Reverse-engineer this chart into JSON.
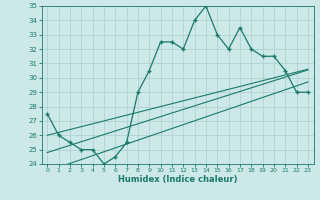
{
  "xlabel": "Humidex (Indice chaleur)",
  "x_data": [
    0,
    1,
    2,
    3,
    4,
    5,
    6,
    7,
    8,
    9,
    10,
    11,
    12,
    13,
    14,
    15,
    16,
    17,
    18,
    19,
    20,
    21,
    22,
    23
  ],
  "main_line": [
    27.5,
    26.0,
    25.5,
    25.0,
    25.0,
    24.0,
    24.5,
    25.5,
    29.0,
    30.5,
    32.5,
    32.5,
    32.0,
    34.0,
    35.0,
    33.0,
    32.0,
    33.5,
    32.0,
    31.5,
    31.5,
    30.5,
    29.0,
    29.0
  ],
  "reg_line1": [
    24.8,
    25.05,
    25.3,
    25.55,
    25.8,
    26.05,
    26.3,
    26.55,
    26.8,
    27.05,
    27.3,
    27.55,
    27.8,
    28.05,
    28.3,
    28.55,
    28.8,
    29.05,
    29.3,
    29.55,
    29.8,
    30.05,
    30.3,
    30.55
  ],
  "reg_line2": [
    26.0,
    26.2,
    26.4,
    26.6,
    26.8,
    27.0,
    27.2,
    27.4,
    27.6,
    27.8,
    28.0,
    28.2,
    28.4,
    28.6,
    28.8,
    29.0,
    29.2,
    29.4,
    29.6,
    29.8,
    30.0,
    30.2,
    30.4,
    30.6
  ],
  "reg_line3": [
    23.5,
    23.77,
    24.04,
    24.31,
    24.58,
    24.85,
    25.12,
    25.39,
    25.66,
    25.93,
    26.2,
    26.47,
    26.74,
    27.01,
    27.28,
    27.55,
    27.82,
    28.09,
    28.36,
    28.63,
    28.9,
    29.17,
    29.44,
    29.71
  ],
  "line_color": "#1a7a6a",
  "bg_color": "#cce8e8",
  "grid_color": "#aacece",
  "ylim": [
    24,
    35
  ],
  "xlim": [
    0,
    23
  ],
  "yticks": [
    24,
    25,
    26,
    27,
    28,
    29,
    30,
    31,
    32,
    33,
    34,
    35
  ],
  "xticks": [
    0,
    1,
    2,
    3,
    4,
    5,
    6,
    7,
    8,
    9,
    10,
    11,
    12,
    13,
    14,
    15,
    16,
    17,
    18,
    19,
    20,
    21,
    22,
    23
  ]
}
